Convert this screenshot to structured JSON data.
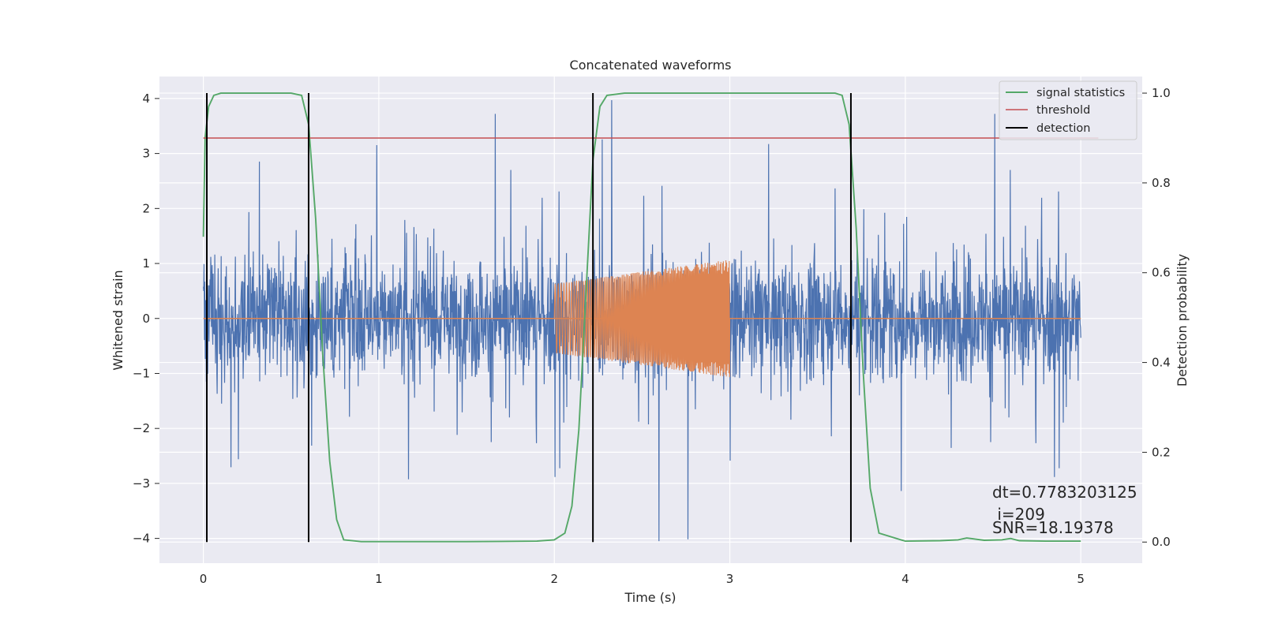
{
  "chart_data": {
    "type": "line",
    "title": "Concatenated waveforms",
    "xlabel": "Time (s)",
    "ylabel": "Whitened strain",
    "y2label": "Detection probability",
    "xlim": [
      -0.25,
      5.35
    ],
    "ylim": [
      -4.45,
      4.4
    ],
    "y2lim": [
      -0.047,
      1.037
    ],
    "xticks": [
      0,
      1,
      2,
      3,
      4,
      5
    ],
    "yticks": [
      -4,
      -3,
      -2,
      -1,
      0,
      1,
      2,
      3,
      4
    ],
    "y2ticks": [
      0.0,
      0.2,
      0.4,
      0.6,
      0.8,
      1.0
    ],
    "xtick_labels": [
      "0",
      "1",
      "2",
      "3",
      "4",
      "5"
    ],
    "ytick_labels": [
      "−4",
      "−3",
      "−2",
      "−1",
      "0",
      "1",
      "2",
      "3",
      "4"
    ],
    "y2tick_labels": [
      "0.0",
      "0.2",
      "0.4",
      "0.6",
      "0.8",
      "1.0"
    ],
    "grid": true,
    "legend_position": "top-right",
    "legend": [
      "signal statistics",
      "threshold",
      "detection"
    ],
    "colors": {
      "strain": "#4c72b0",
      "injected_waveform": "#dd8452",
      "signal_statistics": "#55a868",
      "threshold": "#c44e52",
      "detection": "#000000",
      "axes_bg": "#eaeaf2",
      "grid": "#ffffff"
    },
    "series": [
      {
        "name": "signal statistics",
        "axis": "right",
        "x": [
          0.0,
          0.01,
          0.03,
          0.06,
          0.1,
          0.5,
          0.56,
          0.6,
          0.64,
          0.68,
          0.72,
          0.76,
          0.8,
          0.9,
          1.5,
          1.9,
          2.0,
          2.06,
          2.1,
          2.14,
          2.18,
          2.22,
          2.26,
          2.3,
          2.4,
          3.6,
          3.64,
          3.68,
          3.72,
          3.76,
          3.8,
          3.85,
          4.0,
          4.2,
          4.3,
          4.35,
          4.45,
          4.55,
          4.6,
          4.65,
          4.8,
          5.0
        ],
        "values": [
          0.68,
          0.9,
          0.97,
          0.995,
          1.0,
          1.0,
          0.995,
          0.93,
          0.72,
          0.42,
          0.18,
          0.05,
          0.005,
          0.001,
          0.001,
          0.002,
          0.005,
          0.02,
          0.08,
          0.25,
          0.55,
          0.85,
          0.97,
          0.995,
          1.0,
          1.0,
          0.995,
          0.93,
          0.7,
          0.38,
          0.12,
          0.02,
          0.002,
          0.003,
          0.005,
          0.009,
          0.004,
          0.005,
          0.008,
          0.003,
          0.002,
          0.002
        ]
      },
      {
        "name": "threshold",
        "axis": "right",
        "x": [
          0.0,
          5.1
        ],
        "values": [
          0.9,
          0.9
        ]
      }
    ],
    "strain_noise": {
      "axis": "left",
      "x_range": [
        0.0,
        5.0
      ],
      "typical_range": [
        -1.0,
        1.0
      ],
      "max": 3.97,
      "min": -4.05
    },
    "injected_waveform": {
      "axis": "left",
      "x_range": [
        2.0,
        3.0
      ],
      "amplitude_start": 0.63,
      "amplitude_end": 1.07
    },
    "detections": [
      0.02,
      0.6,
      2.22,
      3.69
    ],
    "annotations": [
      "dt=0.7783203125",
      " i=209",
      "SNR=18.19378"
    ]
  }
}
